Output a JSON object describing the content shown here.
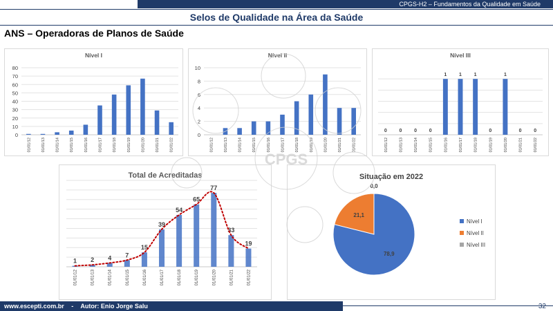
{
  "header": {
    "course": "CPGS-H2 – Fundamentos da Qualidade em Saúde",
    "title": "Selos de Qualidade na Área da Saúde",
    "subtitle": "ANS – Operadoras de Planos de Saúde"
  },
  "footer": {
    "site": "www.escepti.com.br",
    "sep": "-",
    "author": "Autor: Enio Jorge Salu",
    "page": "32"
  },
  "watermark_text": "CPGS",
  "colors": {
    "bar": "#4472c4",
    "nivel1": "#4472c4",
    "nivel2": "#ed7d31",
    "nivel3": "#a5a5a5",
    "trend": "#c00000",
    "header": "#1f3a68"
  },
  "dates": [
    "01/01/12",
    "01/01/13",
    "01/01/14",
    "01/01/15",
    "01/01/16",
    "01/01/17",
    "01/01/18",
    "01/01/19",
    "01/01/20",
    "01/01/21",
    "01/01/22"
  ],
  "chart_data": [
    {
      "type": "bar",
      "title": "Nível I",
      "categories": [
        "01/01/12",
        "01/01/13",
        "01/01/14",
        "01/01/15",
        "01/01/16",
        "01/01/17",
        "01/01/18",
        "01/01/19",
        "01/01/20",
        "01/01/21",
        "01/01/22"
      ],
      "values": [
        1,
        1,
        3,
        5,
        12,
        35,
        48,
        59,
        67,
        29,
        15
      ],
      "ylim": [
        0,
        80
      ],
      "yticks": [
        0,
        10,
        20,
        30,
        40,
        50,
        60,
        70,
        80
      ],
      "grid": true
    },
    {
      "type": "bar",
      "title": "Nível II",
      "categories": [
        "01/01/12",
        "01/01/13",
        "01/01/14",
        "01/01/15",
        "01/01/16",
        "01/01/17",
        "01/01/18",
        "01/01/19",
        "01/01/20",
        "01/01/21",
        "01/01/22"
      ],
      "values": [
        0,
        1,
        1,
        2,
        2,
        3,
        5,
        6,
        9,
        4,
        4
      ],
      "ylim": [
        0,
        10
      ],
      "yticks": [
        0,
        2,
        4,
        6,
        8,
        10
      ],
      "grid": true
    },
    {
      "type": "bar",
      "title": "Nível III",
      "categories": [
        "01/01/12",
        "01/01/13",
        "01/01/14",
        "01/01/15",
        "01/01/16",
        "01/01/17",
        "01/01/18",
        "01/01/19",
        "01/01/20",
        "01/01/21",
        "01/01/22"
      ],
      "values": [
        0,
        0,
        0,
        0,
        1,
        1,
        1,
        0,
        1,
        0,
        0
      ],
      "ylim": [
        0,
        1.2
      ],
      "data_labels": true,
      "grid": true
    },
    {
      "type": "bar",
      "title": "Total de Acreditadas",
      "categories": [
        "01/01/12",
        "01/01/13",
        "01/01/14",
        "01/01/15",
        "01/01/16",
        "01/01/17",
        "01/01/18",
        "01/01/19",
        "01/01/20",
        "01/01/21",
        "01/01/22"
      ],
      "values": [
        1,
        2,
        4,
        7,
        15,
        39,
        54,
        65,
        77,
        33,
        19
      ],
      "ylim": [
        0,
        90
      ],
      "data_labels": true,
      "trendline": "dotted",
      "grid": true
    },
    {
      "type": "pie",
      "title": "Situação em 2022",
      "labels": [
        "Nível I",
        "Nível II",
        "Nível III"
      ],
      "values": [
        78.9,
        21.1,
        0.0
      ],
      "display": [
        "78,9",
        "21,1",
        "0,0"
      ],
      "legend": "right"
    }
  ]
}
